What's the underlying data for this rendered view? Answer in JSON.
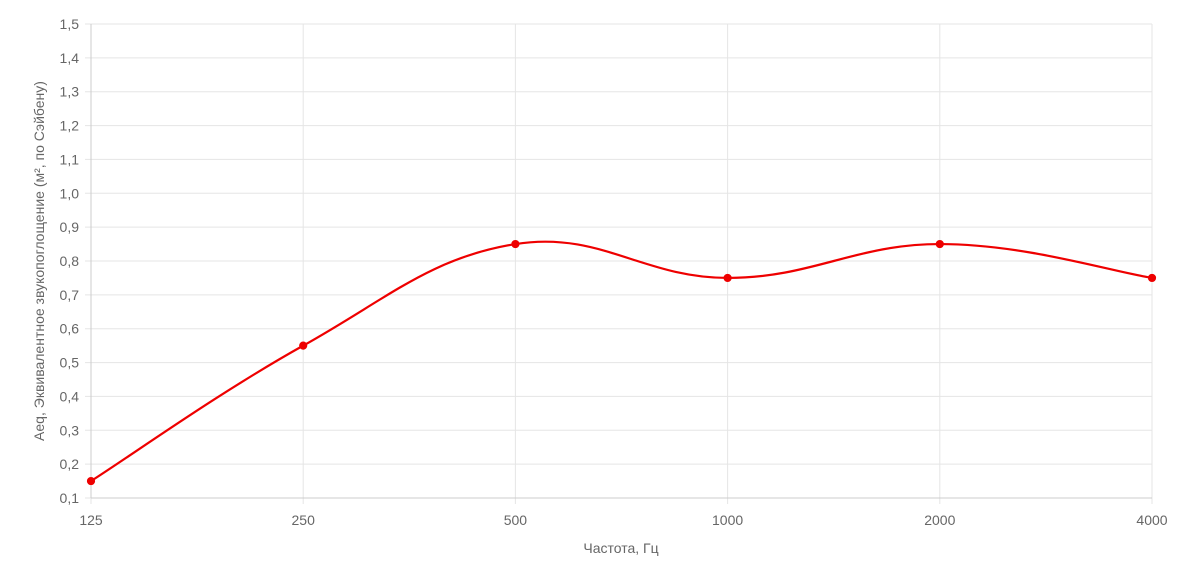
{
  "chart_data": {
    "type": "line",
    "categories": [
      "125",
      "250",
      "500",
      "1000",
      "2000",
      "4000"
    ],
    "series": [
      {
        "values": [
          0.15,
          0.55,
          0.85,
          0.75,
          0.85,
          0.75
        ],
        "color": "#ee0000"
      }
    ],
    "xlabel": "Частота, Гц",
    "ylabel": "Aeq, Эквивалентное звукопоглощение (м², по Сэйбену)",
    "ylim": [
      0.1,
      1.5
    ],
    "yticks": [
      "0,1",
      "0,2",
      "0,3",
      "0,4",
      "0,5",
      "0,6",
      "0,7",
      "0,8",
      "0,9",
      "1,0",
      "1,1",
      "1,2",
      "1,3",
      "1,4",
      "1,5"
    ],
    "grid": true,
    "legend": "none",
    "colors": {
      "grid": "#e5e5e5",
      "axis": "#cccccc",
      "text": "#666666"
    }
  }
}
